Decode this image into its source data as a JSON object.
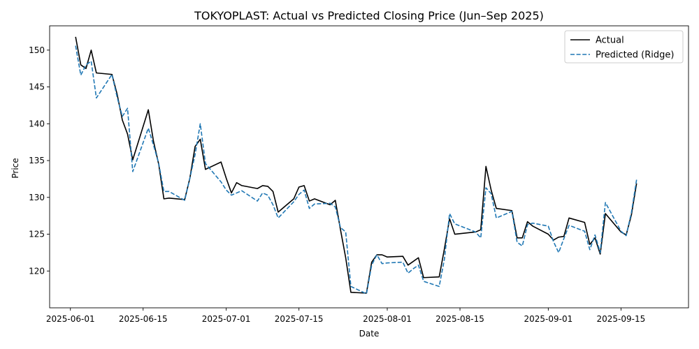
{
  "chart_data": {
    "type": "line",
    "title": "TOKYOPLAST: Actual vs Predicted Closing Price (Jun–Sep 2025)",
    "xlabel": "Date",
    "ylabel": "Price",
    "x_tick_labels": [
      "2025-06-01",
      "2025-06-15",
      "2025-07-01",
      "2025-07-15",
      "2025-08-01",
      "2025-08-15",
      "2025-09-01",
      "2025-09-15"
    ],
    "y_tick_labels": [
      "120",
      "125",
      "130",
      "135",
      "140",
      "145",
      "150"
    ],
    "y_ticks": [
      120,
      125,
      130,
      135,
      140,
      145,
      150
    ],
    "xlim": [
      "2025-05-28",
      "2025-09-28"
    ],
    "ylim": [
      115.0,
      153.3
    ],
    "grid": false,
    "legend_position": "top-right",
    "series": [
      {
        "name": "Actual",
        "color": "#000000",
        "dash": "solid",
        "points": [
          [
            "2025-06-02",
            151.8
          ],
          [
            "2025-06-03",
            148.0
          ],
          [
            "2025-06-04",
            147.5
          ],
          [
            "2025-06-05",
            150.0
          ],
          [
            "2025-06-06",
            146.9
          ],
          [
            "2025-06-09",
            146.7
          ],
          [
            "2025-06-10",
            144.0
          ],
          [
            "2025-06-11",
            140.5
          ],
          [
            "2025-06-12",
            138.6
          ],
          [
            "2025-06-13",
            135.1
          ],
          [
            "2025-06-16",
            141.9
          ],
          [
            "2025-06-17",
            137.6
          ],
          [
            "2025-06-18",
            134.5
          ],
          [
            "2025-06-19",
            129.8
          ],
          [
            "2025-06-20",
            129.9
          ],
          [
            "2025-06-23",
            129.7
          ],
          [
            "2025-06-24",
            132.6
          ],
          [
            "2025-06-25",
            136.9
          ],
          [
            "2025-06-26",
            137.9
          ],
          [
            "2025-06-27",
            133.8
          ],
          [
            "2025-06-30",
            134.8
          ],
          [
            "2025-07-01",
            132.6
          ],
          [
            "2025-07-02",
            130.6
          ],
          [
            "2025-07-03",
            132.0
          ],
          [
            "2025-07-04",
            131.6
          ],
          [
            "2025-07-07",
            131.2
          ],
          [
            "2025-07-08",
            131.6
          ],
          [
            "2025-07-09",
            131.5
          ],
          [
            "2025-07-10",
            130.8
          ],
          [
            "2025-07-11",
            128.0
          ],
          [
            "2025-07-14",
            129.8
          ],
          [
            "2025-07-15",
            131.4
          ],
          [
            "2025-07-16",
            131.6
          ],
          [
            "2025-07-17",
            129.5
          ],
          [
            "2025-07-18",
            129.8
          ],
          [
            "2025-07-21",
            129.0
          ],
          [
            "2025-07-22",
            129.6
          ],
          [
            "2025-07-23",
            125.6
          ],
          [
            "2025-07-24",
            121.8
          ],
          [
            "2025-07-25",
            117.1
          ],
          [
            "2025-07-28",
            117.0
          ],
          [
            "2025-07-29",
            121.2
          ],
          [
            "2025-07-30",
            122.2
          ],
          [
            "2025-07-31",
            122.2
          ],
          [
            "2025-08-01",
            121.9
          ],
          [
            "2025-08-04",
            122.0
          ],
          [
            "2025-08-05",
            120.8
          ],
          [
            "2025-08-06",
            121.3
          ],
          [
            "2025-08-07",
            121.8
          ],
          [
            "2025-08-08",
            119.1
          ],
          [
            "2025-08-11",
            119.2
          ],
          [
            "2025-08-12",
            123.0
          ],
          [
            "2025-08-13",
            127.1
          ],
          [
            "2025-08-14",
            125.0
          ],
          [
            "2025-08-18",
            125.3
          ],
          [
            "2025-08-19",
            125.6
          ],
          [
            "2025-08-20",
            134.2
          ],
          [
            "2025-08-21",
            131.0
          ],
          [
            "2025-08-22",
            128.5
          ],
          [
            "2025-08-25",
            128.2
          ],
          [
            "2025-08-26",
            124.5
          ],
          [
            "2025-08-27",
            124.5
          ],
          [
            "2025-08-28",
            126.7
          ],
          [
            "2025-08-29",
            126.1
          ],
          [
            "2025-09-01",
            125.0
          ],
          [
            "2025-09-02",
            124.2
          ],
          [
            "2025-09-03",
            124.6
          ],
          [
            "2025-09-04",
            124.7
          ],
          [
            "2025-09-05",
            127.2
          ],
          [
            "2025-09-08",
            126.6
          ],
          [
            "2025-09-09",
            123.6
          ],
          [
            "2025-09-10",
            124.5
          ],
          [
            "2025-09-11",
            122.3
          ],
          [
            "2025-09-12",
            127.8
          ],
          [
            "2025-09-15",
            125.3
          ],
          [
            "2025-09-16",
            124.9
          ],
          [
            "2025-09-17",
            127.6
          ],
          [
            "2025-09-18",
            131.9
          ]
        ]
      },
      {
        "name": "Predicted (Ridge)",
        "color": "#1f77b4",
        "dash": "dashed",
        "points": [
          [
            "2025-06-02",
            150.6
          ],
          [
            "2025-06-03",
            146.6
          ],
          [
            "2025-06-04",
            148.0
          ],
          [
            "2025-06-05",
            148.5
          ],
          [
            "2025-06-06",
            143.5
          ],
          [
            "2025-06-09",
            146.7
          ],
          [
            "2025-06-10",
            143.6
          ],
          [
            "2025-06-11",
            141.0
          ],
          [
            "2025-06-12",
            142.1
          ],
          [
            "2025-06-13",
            133.5
          ],
          [
            "2025-06-16",
            139.4
          ],
          [
            "2025-06-17",
            137.1
          ],
          [
            "2025-06-18",
            134.6
          ],
          [
            "2025-06-19",
            130.8
          ],
          [
            "2025-06-20",
            130.8
          ],
          [
            "2025-06-23",
            129.6
          ],
          [
            "2025-06-24",
            132.6
          ],
          [
            "2025-06-25",
            135.8
          ],
          [
            "2025-06-26",
            140.0
          ],
          [
            "2025-06-27",
            134.6
          ],
          [
            "2025-06-30",
            132.1
          ],
          [
            "2025-07-01",
            131.0
          ],
          [
            "2025-07-02",
            130.3
          ],
          [
            "2025-07-03",
            130.6
          ],
          [
            "2025-07-04",
            130.9
          ],
          [
            "2025-07-07",
            129.5
          ],
          [
            "2025-07-08",
            130.6
          ],
          [
            "2025-07-09",
            130.3
          ],
          [
            "2025-07-10",
            129.0
          ],
          [
            "2025-07-11",
            127.2
          ],
          [
            "2025-07-14",
            129.4
          ],
          [
            "2025-07-15",
            130.4
          ],
          [
            "2025-07-16",
            131.0
          ],
          [
            "2025-07-17",
            128.5
          ],
          [
            "2025-07-18",
            129.1
          ],
          [
            "2025-07-21",
            129.2
          ],
          [
            "2025-07-22",
            128.7
          ],
          [
            "2025-07-23",
            125.9
          ],
          [
            "2025-07-24",
            125.3
          ],
          [
            "2025-07-25",
            117.9
          ],
          [
            "2025-07-28",
            116.9
          ],
          [
            "2025-07-29",
            120.8
          ],
          [
            "2025-07-30",
            122.2
          ],
          [
            "2025-07-31",
            121.0
          ],
          [
            "2025-08-01",
            121.1
          ],
          [
            "2025-08-04",
            121.2
          ],
          [
            "2025-08-05",
            119.7
          ],
          [
            "2025-08-06",
            120.3
          ],
          [
            "2025-08-07",
            120.8
          ],
          [
            "2025-08-08",
            118.6
          ],
          [
            "2025-08-11",
            117.9
          ],
          [
            "2025-08-12",
            121.6
          ],
          [
            "2025-08-13",
            127.8
          ],
          [
            "2025-08-14",
            126.4
          ],
          [
            "2025-08-18",
            125.3
          ],
          [
            "2025-08-19",
            124.5
          ],
          [
            "2025-08-20",
            131.3
          ],
          [
            "2025-08-21",
            130.5
          ],
          [
            "2025-08-22",
            127.2
          ],
          [
            "2025-08-25",
            128.1
          ],
          [
            "2025-08-26",
            123.9
          ],
          [
            "2025-08-27",
            123.4
          ],
          [
            "2025-08-28",
            126.3
          ],
          [
            "2025-08-29",
            126.5
          ],
          [
            "2025-09-01",
            126.1
          ],
          [
            "2025-09-02",
            124.0
          ],
          [
            "2025-09-03",
            122.5
          ],
          [
            "2025-09-04",
            124.4
          ],
          [
            "2025-09-05",
            126.2
          ],
          [
            "2025-09-08",
            125.4
          ],
          [
            "2025-09-09",
            122.9
          ],
          [
            "2025-09-10",
            124.9
          ],
          [
            "2025-09-11",
            122.5
          ],
          [
            "2025-09-12",
            129.3
          ],
          [
            "2025-09-15",
            125.4
          ],
          [
            "2025-09-16",
            124.8
          ],
          [
            "2025-09-17",
            127.9
          ],
          [
            "2025-09-18",
            132.4
          ]
        ]
      }
    ]
  }
}
